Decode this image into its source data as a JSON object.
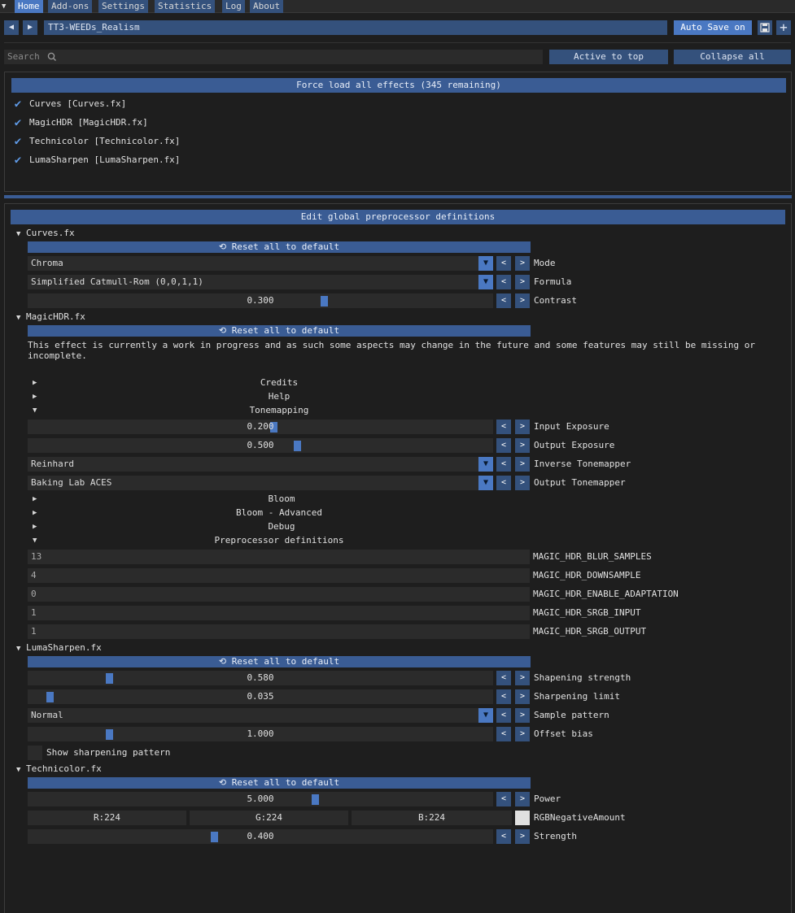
{
  "menu": {
    "items": [
      "Home",
      "Add-ons",
      "Settings",
      "Statistics",
      "Log",
      "About"
    ]
  },
  "toolbar": {
    "preset_name": "TT3-WEEDs_Realism",
    "auto_save_label": "Auto Save on",
    "prev": "◀",
    "next": "▶",
    "save_icon": "save-icon",
    "add_icon": "plus-icon"
  },
  "search": {
    "placeholder": "Search",
    "active_to_top": "Active to top",
    "collapse_all": "Collapse all"
  },
  "effects": {
    "force_load": "Force load all effects (345 remaining)",
    "list": [
      "Curves [Curves.fx]",
      "MagicHDR [MagicHDR.fx]",
      "Technicolor [Technicolor.fx]",
      "LumaSharpen [LumaSharpen.fx]"
    ]
  },
  "params": {
    "edit_global": "Edit global preprocessor definitions",
    "reset_label": "Reset all to default",
    "curves": {
      "title": "Curves.fx",
      "mode": {
        "value": "Chroma",
        "label": "Mode"
      },
      "formula": {
        "value": "Simplified Catmull-Rom (0,0,1,1)",
        "label": "Formula"
      },
      "contrast": {
        "value": "0.300",
        "label": "Contrast",
        "fraction": 0.64
      }
    },
    "magichdr": {
      "title": "MagicHDR.fx",
      "note": "This effect is currently a work in progress and as such some aspects may change in the future and some features may still be missing or incomplete.",
      "credits": "Credits",
      "help": "Help",
      "tonemapping": "Tonemapping",
      "input_exposure": {
        "value": "0.200",
        "label": "Input Exposure",
        "fraction": 0.53
      },
      "output_exposure": {
        "value": "0.500",
        "label": "Output Exposure",
        "fraction": 0.58
      },
      "inverse_tonemapper": {
        "value": "Reinhard",
        "label": "Inverse Tonemapper"
      },
      "output_tonemapper": {
        "value": "Baking Lab ACES",
        "label": "Output Tonemapper"
      },
      "bloom": "Bloom",
      "bloom_adv": "Bloom - Advanced",
      "debug": "Debug",
      "preproc": "Preprocessor definitions",
      "defs": [
        {
          "value": "13",
          "name": "MAGIC_HDR_BLUR_SAMPLES"
        },
        {
          "value": "4",
          "name": "MAGIC_HDR_DOWNSAMPLE"
        },
        {
          "value": "0",
          "name": "MAGIC_HDR_ENABLE_ADAPTATION"
        },
        {
          "value": "1",
          "name": "MAGIC_HDR_SRGB_INPUT"
        },
        {
          "value": "1",
          "name": "MAGIC_HDR_SRGB_OUTPUT"
        }
      ]
    },
    "lumasharpen": {
      "title": "LumaSharpen.fx",
      "strength": {
        "value": "0.580",
        "label": "Shapening strength",
        "fraction": 0.17
      },
      "limit": {
        "value": "0.035",
        "label": "Sharpening limit",
        "fraction": 0.04
      },
      "pattern": {
        "value": "Normal",
        "label": "Sample pattern"
      },
      "offset": {
        "value": "1.000",
        "label": "Offset bias",
        "fraction": 0.17
      },
      "show_pattern": "Show sharpening pattern"
    },
    "technicolor": {
      "title": "Technicolor.fx",
      "power": {
        "value": "5.000",
        "label": "Power",
        "fraction": 0.62
      },
      "rgb": {
        "r": "R:224",
        "g": "G:224",
        "b": "B:224",
        "label": "RGBNegativeAmount"
      },
      "strength": {
        "value": "0.400",
        "label": "Strength",
        "fraction": 0.4
      }
    }
  }
}
